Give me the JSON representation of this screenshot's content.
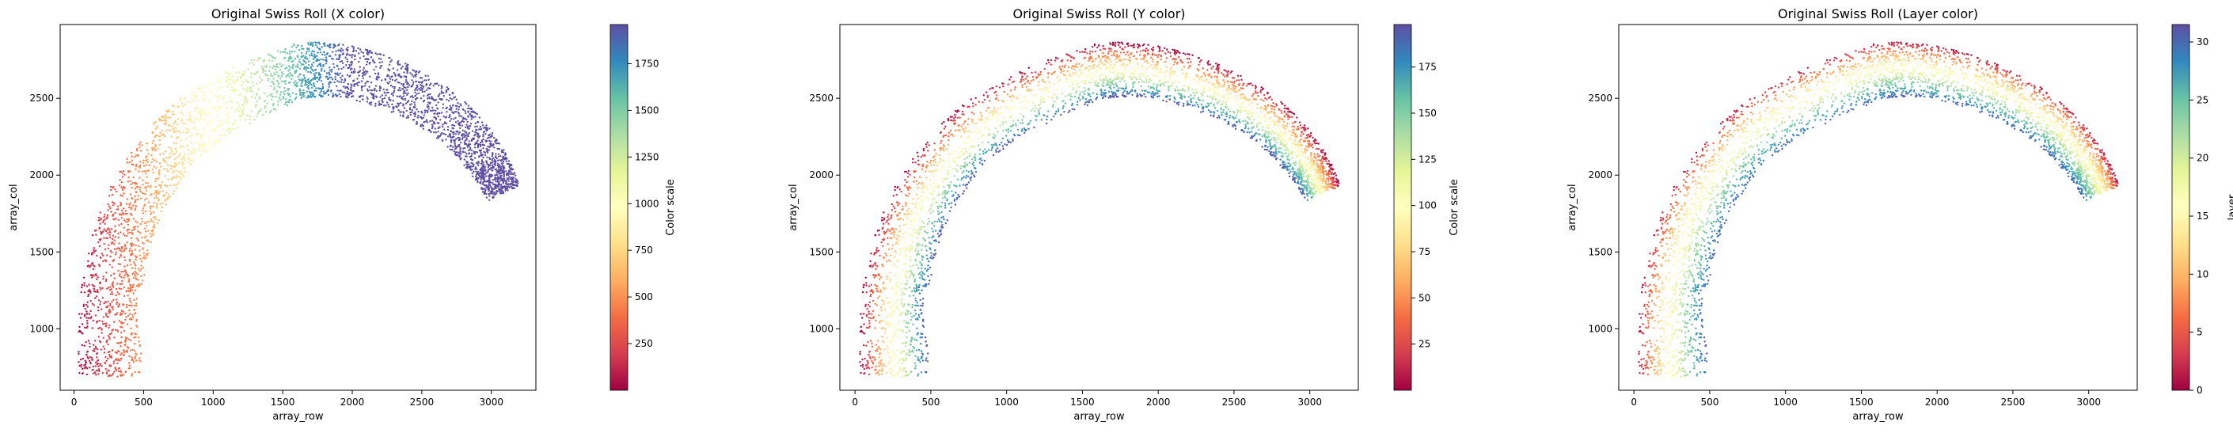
{
  "chart_data": [
    {
      "type": "scatter",
      "title": "Original Swiss Roll (X color)",
      "xlabel": "array_row",
      "ylabel": "array_col",
      "xlim": [
        -100,
        3320
      ],
      "ylim": [
        600,
        2980
      ],
      "xticks": [
        0,
        500,
        1000,
        1500,
        2000,
        2500,
        3000
      ],
      "yticks": [
        1000,
        1500,
        2000,
        2500
      ],
      "colorbar": {
        "label": "Color scale",
        "range": [
          0,
          1960
        ],
        "ticks": [
          250,
          500,
          750,
          1000,
          1250,
          1500,
          1750
        ]
      },
      "color_mode": "x",
      "colormap": "Spectral",
      "shape": "swiss-roll arc",
      "x_range": [
        30,
        3200
      ],
      "y_range": [
        700,
        2860
      ],
      "grid": false
    },
    {
      "type": "scatter",
      "title": "Original Swiss Roll (Y color)",
      "xlabel": "array_row",
      "ylabel": "array_col",
      "xlim": [
        -100,
        3320
      ],
      "ylim": [
        600,
        2980
      ],
      "xticks": [
        0,
        500,
        1000,
        1500,
        2000,
        2500,
        3000
      ],
      "yticks": [
        1000,
        1500,
        2000,
        2500
      ],
      "colorbar": {
        "label": "Color scale",
        "range": [
          0,
          198
        ],
        "ticks": [
          25,
          50,
          75,
          100,
          125,
          150,
          175
        ]
      },
      "color_mode": "depth",
      "colormap": "Spectral",
      "shape": "swiss-roll arc",
      "x_range": [
        30,
        3200
      ],
      "y_range": [
        700,
        2860
      ],
      "grid": false
    },
    {
      "type": "scatter",
      "title": "Original Swiss Roll (Layer color)",
      "xlabel": "array_row",
      "ylabel": "array_col",
      "xlim": [
        -100,
        3320
      ],
      "ylim": [
        600,
        2980
      ],
      "xticks": [
        0,
        500,
        1000,
        1500,
        2000,
        2500,
        3000
      ],
      "yticks": [
        1000,
        1500,
        2000,
        2500
      ],
      "colorbar": {
        "label": "layer",
        "range": [
          0,
          31.5
        ],
        "ticks": [
          0,
          5,
          10,
          15,
          20,
          25,
          30
        ]
      },
      "color_mode": "layer",
      "colormap": "Spectral",
      "shape": "swiss-roll arc",
      "x_range": [
        30,
        3200
      ],
      "y_range": [
        700,
        2860
      ],
      "grid": false
    }
  ]
}
